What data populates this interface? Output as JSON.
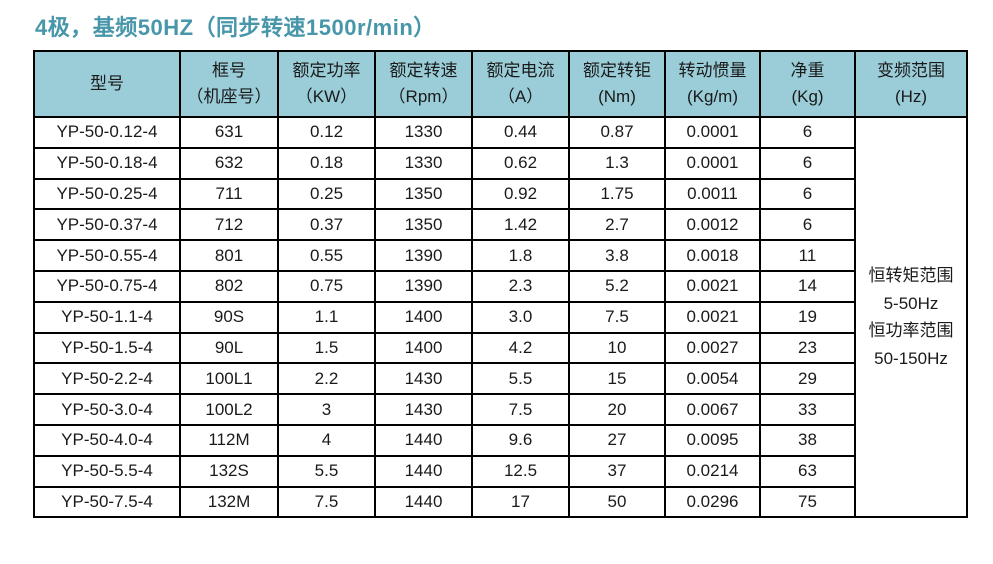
{
  "title": "4极，基频50HZ（同步转速1500r/min）",
  "colors": {
    "title_text": "#4796AA",
    "header_background": "#9ACDD8",
    "border": "#000000",
    "body_text": "#1a1a1a",
    "page_background": "#ffffff"
  },
  "table": {
    "headers": [
      {
        "title": "型号",
        "unit": ""
      },
      {
        "title": "框号",
        "unit": "（机座号）"
      },
      {
        "title": "额定功率",
        "unit": "（KW）"
      },
      {
        "title": "额定转速",
        "unit": "（Rpm）"
      },
      {
        "title": "额定电流",
        "unit": "（A）"
      },
      {
        "title": "额定转钜",
        "unit": "(Nm)"
      },
      {
        "title": "转动惯量",
        "unit": "(Kg/m)"
      },
      {
        "title": "净重",
        "unit": "(Kg)"
      },
      {
        "title": "变频范围",
        "unit": "(Hz)"
      }
    ],
    "column_keys": [
      "model",
      "frame",
      "power",
      "speed",
      "current",
      "torque",
      "inertia",
      "weight"
    ],
    "rows": [
      [
        "YP-50-0.12-4",
        "631",
        "0.12",
        "1330",
        "0.44",
        "0.87",
        "0.0001",
        "6"
      ],
      [
        "YP-50-0.18-4",
        "632",
        "0.18",
        "1330",
        "0.62",
        "1.3",
        "0.0001",
        "6"
      ],
      [
        "YP-50-0.25-4",
        "711",
        "0.25",
        "1350",
        "0.92",
        "1.75",
        "0.0011",
        "6"
      ],
      [
        "YP-50-0.37-4",
        "712",
        "0.37",
        "1350",
        "1.42",
        "2.7",
        "0.0012",
        "6"
      ],
      [
        "YP-50-0.55-4",
        "801",
        "0.55",
        "1390",
        "1.8",
        "3.8",
        "0.0018",
        "11"
      ],
      [
        "YP-50-0.75-4",
        "802",
        "0.75",
        "1390",
        "2.3",
        "5.2",
        "0.0021",
        "14"
      ],
      [
        "YP-50-1.1-4",
        "90S",
        "1.1",
        "1400",
        "3.0",
        "7.5",
        "0.0021",
        "19"
      ],
      [
        "YP-50-1.5-4",
        "90L",
        "1.5",
        "1400",
        "4.2",
        "10",
        "0.0027",
        "23"
      ],
      [
        "YP-50-2.2-4",
        "100L1",
        "2.2",
        "1430",
        "5.5",
        "15",
        "0.0054",
        "29"
      ],
      [
        "YP-50-3.0-4",
        "100L2",
        "3",
        "1430",
        "7.5",
        "20",
        "0.0067",
        "33"
      ],
      [
        "YP-50-4.0-4",
        "112M",
        "4",
        "1440",
        "9.6",
        "27",
        "0.0095",
        "38"
      ],
      [
        "YP-50-5.5-4",
        "132S",
        "5.5",
        "1440",
        "12.5",
        "37",
        "0.0214",
        "63"
      ],
      [
        "YP-50-7.5-4",
        "132M",
        "7.5",
        "1440",
        "17",
        "50",
        "0.0296",
        "75"
      ]
    ],
    "frequency_range_note": [
      "恒转矩范围",
      "5-50Hz",
      "恒功率范围",
      "50-150Hz"
    ]
  }
}
